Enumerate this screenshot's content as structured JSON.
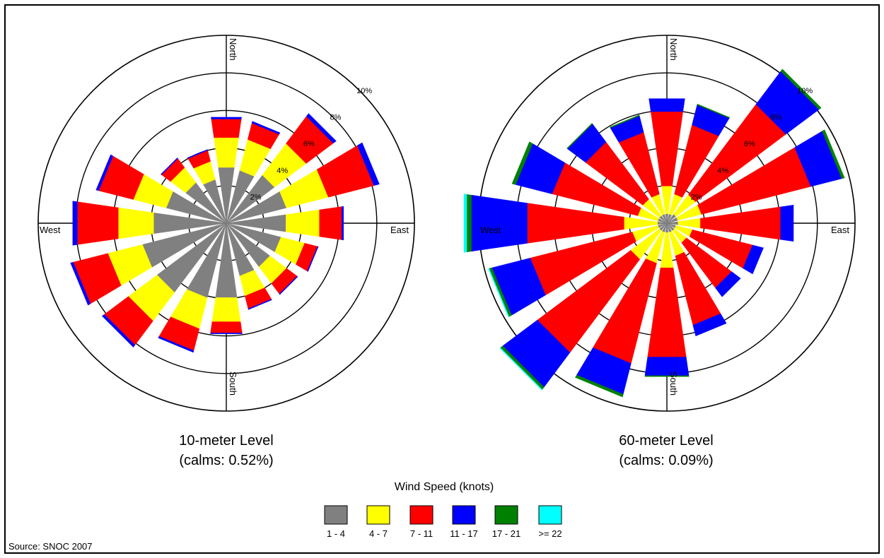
{
  "chart_data": [
    {
      "type": "wind-rose",
      "title": "10-meter Level",
      "subtitle": "(calms: 0.52%)",
      "direction_labels": [
        "North",
        "East",
        "South",
        "West"
      ],
      "ring_labels": [
        "2%",
        "4%",
        "6%",
        "8%",
        "10%"
      ],
      "ring_values": [
        2,
        4,
        6,
        8,
        10
      ],
      "directions_deg": [
        0,
        22.5,
        45,
        67.5,
        90,
        112.5,
        135,
        157.5,
        180,
        202.5,
        225,
        247.5,
        270,
        292.5,
        315,
        337.5
      ],
      "series": [
        {
          "name": "1 - 4",
          "values": [
            3.0,
            2.9,
            3.2,
            3.3,
            3.2,
            3.0,
            2.9,
            2.9,
            4.0,
            4.1,
            4.6,
            4.6,
            3.9,
            3.3,
            2.7,
            2.4
          ]
        },
        {
          "name": "4 - 7",
          "values": [
            1.6,
            1.7,
            2.1,
            2.3,
            1.8,
            1.3,
            1.1,
            1.1,
            1.3,
            1.7,
            1.9,
            1.9,
            1.9,
            1.8,
            1.0,
            1.0
          ]
        },
        {
          "name": "7 - 11",
          "values": [
            1.0,
            0.9,
            1.8,
            2.5,
            1.2,
            0.7,
            0.7,
            0.7,
            0.6,
            1.2,
            1.6,
            1.9,
            2.2,
            1.9,
            0.6,
            0.6
          ]
        },
        {
          "name": "11 - 17",
          "values": [
            0.1,
            0.1,
            0.2,
            0.3,
            0.1,
            0.05,
            0.05,
            0.05,
            0.05,
            0.1,
            0.15,
            0.15,
            0.25,
            0.15,
            0.05,
            0.05
          ]
        },
        {
          "name": "17 - 21",
          "values": [
            0,
            0,
            0,
            0,
            0,
            0,
            0,
            0,
            0,
            0,
            0,
            0,
            0,
            0,
            0,
            0
          ]
        },
        {
          "name": ">= 22",
          "values": [
            0,
            0,
            0,
            0,
            0,
            0,
            0,
            0,
            0,
            0,
            0,
            0,
            0,
            0,
            0,
            0
          ]
        }
      ]
    },
    {
      "type": "wind-rose",
      "title": "60-meter Level",
      "subtitle": "(calms: 0.09%)",
      "direction_labels": [
        "North",
        "East",
        "South",
        "West"
      ],
      "ring_labels": [
        "2%",
        "4%",
        "6%",
        "8%",
        "10%"
      ],
      "ring_values": [
        2,
        4,
        6,
        8,
        10
      ],
      "directions_deg": [
        0,
        22.5,
        45,
        67.5,
        90,
        112.5,
        135,
        157.5,
        180,
        202.5,
        225,
        247.5,
        270,
        292.5,
        315,
        337.5
      ],
      "series": [
        {
          "name": "1 - 4",
          "values": [
            0.5,
            0.5,
            0.6,
            0.6,
            0.6,
            0.5,
            0.5,
            0.5,
            0.5,
            0.5,
            0.5,
            0.5,
            0.5,
            0.5,
            0.5,
            0.5
          ]
        },
        {
          "name": "4 - 7",
          "values": [
            1.5,
            1.1,
            1.3,
            1.3,
            1.2,
            0.9,
            0.8,
            1.3,
            1.9,
            1.7,
            1.9,
            1.4,
            1.8,
            1.1,
            1.1,
            1.1
          ]
        },
        {
          "name": "7 - 11",
          "values": [
            4.0,
            3.8,
            6.0,
            6.0,
            4.3,
            3.3,
            3.0,
            3.8,
            4.8,
            5.5,
            6.2,
            5.6,
            5.2,
            4.7,
            3.8,
            3.4
          ]
        },
        {
          "name": "11 - 17",
          "values": [
            0.7,
            1.1,
            2.2,
            1.7,
            0.7,
            0.6,
            0.6,
            0.6,
            1.0,
            1.7,
            2.3,
            2.1,
            3.0,
            2.0,
            1.2,
            0.9
          ]
        },
        {
          "name": "17 - 21",
          "values": [
            0,
            0.05,
            0.15,
            0.15,
            0,
            0,
            0,
            0,
            0.05,
            0.15,
            0.15,
            0.15,
            0.25,
            0.2,
            0.05,
            0.05
          ]
        },
        {
          "name": ">= 22",
          "values": [
            0,
            0,
            0,
            0,
            0,
            0,
            0,
            0,
            0,
            0,
            0.05,
            0.05,
            0.15,
            0,
            0,
            0
          ]
        }
      ]
    }
  ],
  "legend": {
    "title": "Wind Speed (knots)",
    "items": [
      {
        "label": "1 - 4",
        "color": "#808080"
      },
      {
        "label": "4 - 7",
        "color": "#ffff00"
      },
      {
        "label": "7 - 11",
        "color": "#ff0000"
      },
      {
        "label": "11 - 17",
        "color": "#0000ff"
      },
      {
        "label": "17 - 21",
        "color": "#008000"
      },
      {
        "label": ">= 22",
        "color": "#00ffff"
      }
    ]
  },
  "source": "Source: SNOC 2007"
}
